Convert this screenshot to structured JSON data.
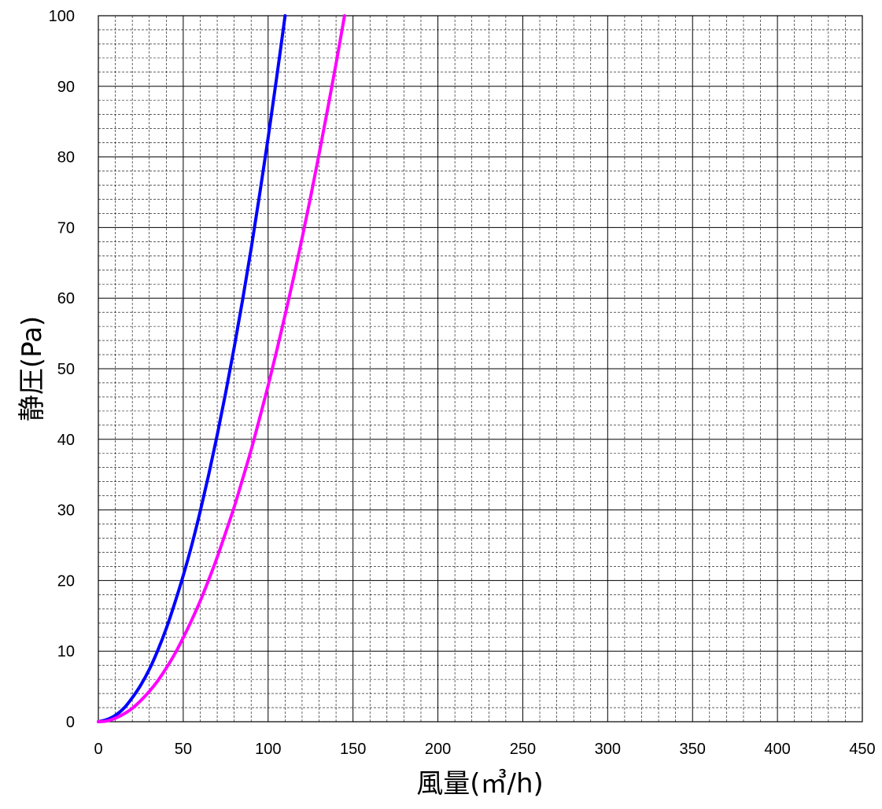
{
  "chart_data": {
    "type": "line",
    "xlabel": "風量(㎥/h)",
    "ylabel": "静圧(Pa)",
    "xlim": [
      0,
      450
    ],
    "ylim": [
      0,
      100
    ],
    "x_ticks": [
      "0",
      "50",
      "100",
      "150",
      "200",
      "250",
      "300",
      "350",
      "400",
      "450"
    ],
    "y_ticks": [
      "0",
      "10",
      "20",
      "30",
      "40",
      "50",
      "60",
      "70",
      "80",
      "90",
      "100"
    ],
    "x_minor_step": 10,
    "y_minor_step": 2,
    "grid": true,
    "series": [
      {
        "color": "#0000ff",
        "x": [
          0,
          5,
          10,
          15,
          20,
          25,
          30,
          35,
          40,
          45,
          50,
          55,
          60,
          65,
          70,
          75,
          80,
          85,
          90,
          95,
          100,
          105,
          110
        ],
        "y": [
          0,
          0.3,
          0.9,
          1.9,
          3.4,
          5.2,
          7.4,
          10.1,
          13.2,
          16.8,
          20.7,
          25.0,
          29.8,
          35.0,
          40.6,
          46.6,
          53.0,
          59.8,
          67.0,
          74.7,
          82.7,
          91.2,
          100
        ]
      },
      {
        "color": "#ff00ff",
        "x": [
          0,
          5,
          10,
          15,
          20,
          25,
          30,
          35,
          40,
          45,
          50,
          55,
          60,
          65,
          70,
          75,
          80,
          85,
          90,
          95,
          100,
          105,
          110,
          115,
          120,
          125,
          130,
          135,
          140,
          145
        ],
        "y": [
          0,
          0.1,
          0.5,
          1.1,
          1.9,
          3.0,
          4.3,
          5.8,
          7.6,
          9.6,
          11.9,
          14.4,
          17.1,
          20.1,
          23.3,
          26.8,
          30.4,
          34.4,
          38.5,
          43.0,
          47.6,
          52.5,
          57.6,
          62.9,
          68.5,
          74.3,
          80.4,
          86.7,
          93.2,
          100
        ]
      }
    ]
  }
}
